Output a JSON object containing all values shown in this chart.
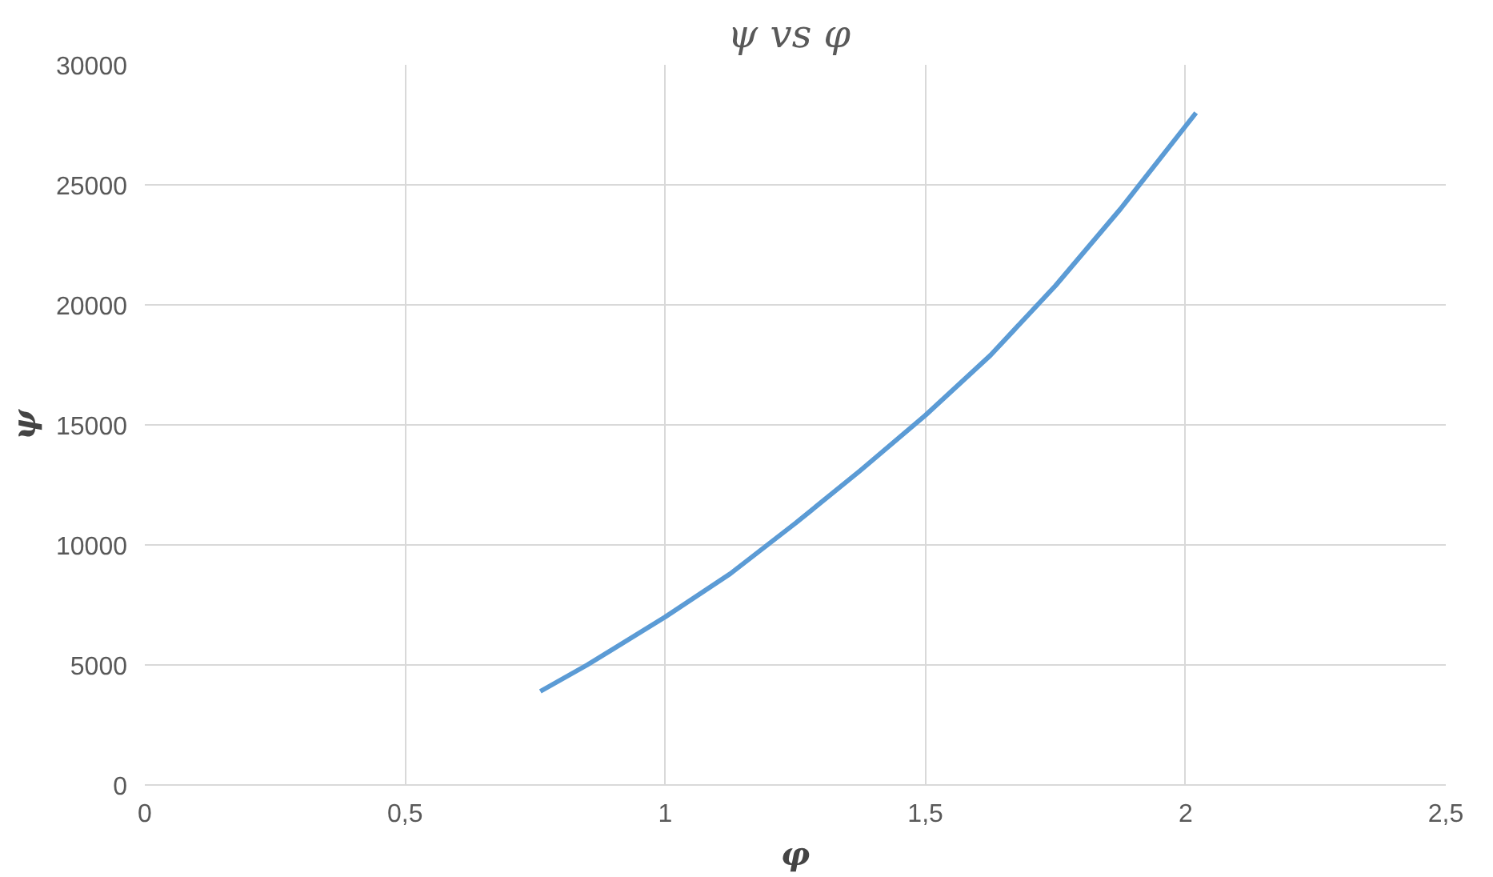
{
  "chart_data": {
    "type": "line",
    "title": "ψ vs  φ",
    "xlabel": "φ",
    "ylabel": "ψ",
    "x": [
      0.76,
      0.85,
      1.0,
      1.125,
      1.25,
      1.375,
      1.5,
      1.625,
      1.75,
      1.875,
      2.02
    ],
    "series": [
      {
        "color": "#5b9bd5",
        "values": [
          3900,
          5000,
          7000,
          8800,
          10900,
          13100,
          15400,
          17900,
          20800,
          24000,
          28000
        ]
      }
    ],
    "xlim": [
      0,
      2.5
    ],
    "ylim": [
      0,
      30000
    ],
    "xticks": [
      0,
      {
        "value": 0.5,
        "label": "0,5"
      },
      1,
      {
        "value": 1.5,
        "label": "1,5"
      },
      2,
      {
        "value": 2.5,
        "label": "2,5"
      }
    ],
    "yticks": [
      0,
      5000,
      10000,
      15000,
      20000,
      25000,
      30000
    ],
    "grid": true,
    "marker": "none",
    "line_style": "solid"
  }
}
